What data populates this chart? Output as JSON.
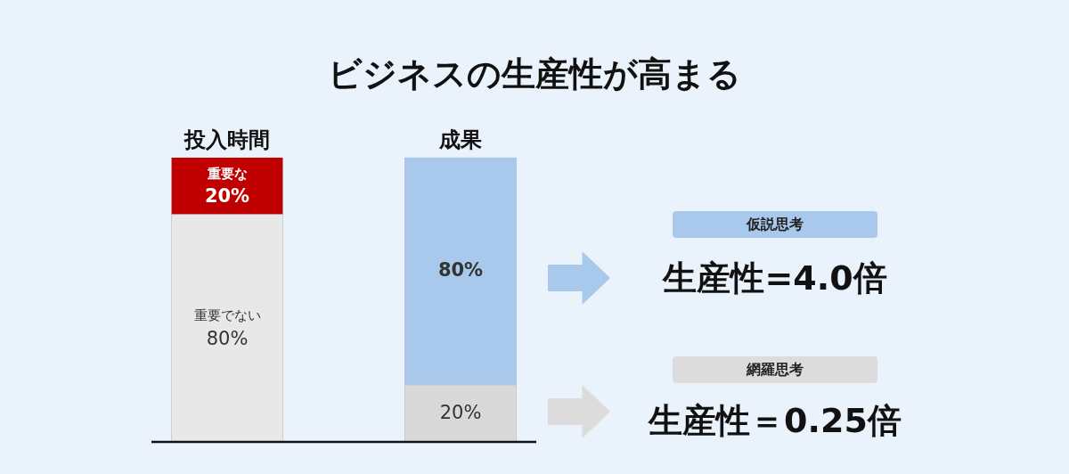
{
  "chart_data": {
    "type": "bar",
    "title": "ビジネスの生産性が高まる",
    "categories": [
      "投入時間",
      "成果"
    ],
    "stacked": true,
    "ylim": [
      0,
      100
    ],
    "tick_labels": "x",
    "grid": false,
    "legend": false,
    "series": [
      {
        "values": [
          80,
          20
        ],
        "colors": [
          "#e8e8e8",
          "#d9d9d9"
        ],
        "value_labels": [
          "重要でない\n80%",
          "20%"
        ]
      },
      {
        "values": [
          20,
          80
        ],
        "colors": [
          "#c00000",
          "#a9c9ec"
        ],
        "value_labels": [
          "重要な\n20%",
          "80%"
        ]
      }
    ],
    "annotations": [
      "仮説思考",
      "生産性=4.0倍",
      "網羅思考",
      "生産性＝0.25倍"
    ]
  }
}
